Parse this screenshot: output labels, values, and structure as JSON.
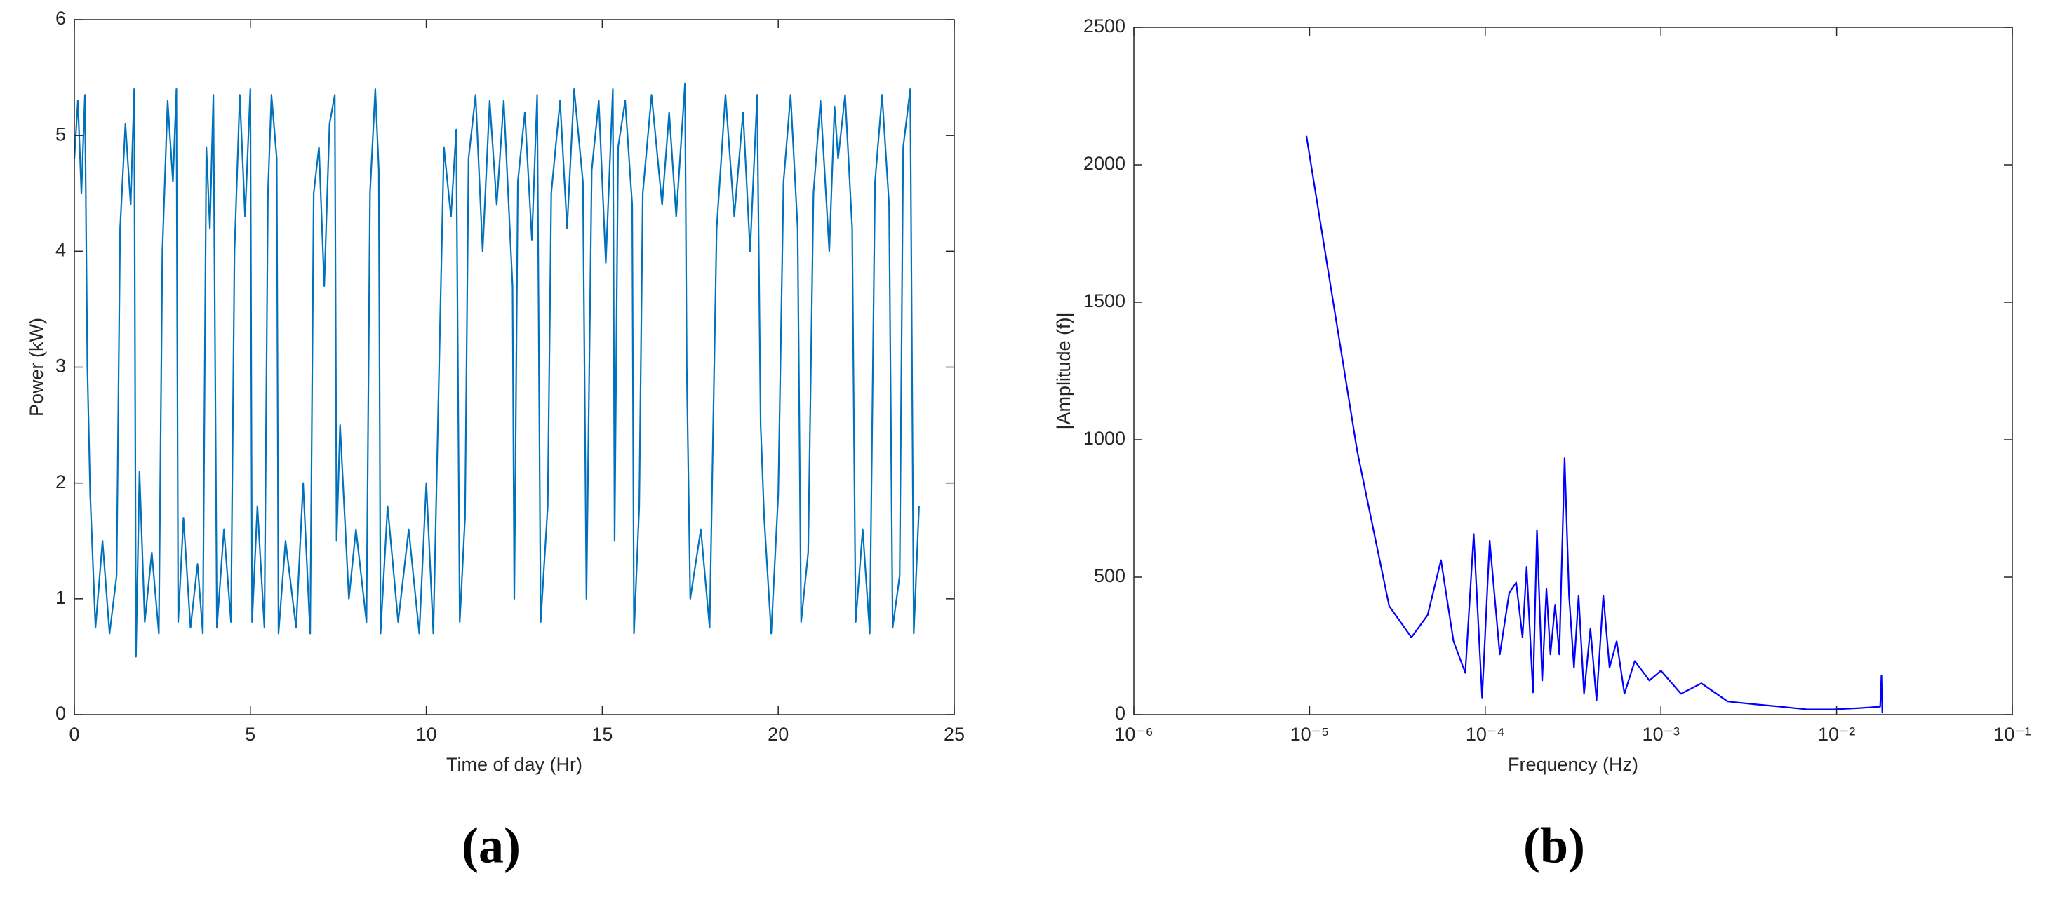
{
  "chart_data": [
    {
      "type": "line",
      "caption": "(a)",
      "xlabel": "Time of day (Hr)",
      "ylabel": "Power (kW)",
      "color": "#0072bd",
      "xlim": [
        0,
        25
      ],
      "xticks": [
        0,
        5,
        10,
        15,
        20,
        25
      ],
      "ylim": [
        0,
        6
      ],
      "yticks": [
        0,
        1,
        2,
        3,
        4,
        5,
        6
      ],
      "log_x": false,
      "x": [
        0.0,
        0.1,
        0.2,
        0.3,
        0.37,
        0.45,
        0.6,
        0.8,
        1.0,
        1.2,
        1.3,
        1.45,
        1.6,
        1.7,
        1.75,
        1.85,
        2.0,
        2.2,
        2.4,
        2.5,
        2.65,
        2.8,
        2.9,
        2.95,
        3.1,
        3.3,
        3.5,
        3.65,
        3.75,
        3.85,
        3.95,
        4.05,
        4.25,
        4.45,
        4.55,
        4.7,
        4.85,
        5.0,
        5.05,
        5.2,
        5.4,
        5.5,
        5.6,
        5.75,
        5.8,
        6.0,
        6.3,
        6.5,
        6.7,
        6.8,
        6.95,
        7.1,
        7.25,
        7.4,
        7.45,
        7.55,
        7.8,
        8.0,
        8.3,
        8.4,
        8.55,
        8.65,
        8.7,
        8.9,
        9.2,
        9.5,
        9.8,
        10.0,
        10.2,
        10.4,
        10.5,
        10.7,
        10.85,
        10.95,
        11.1,
        11.2,
        11.4,
        11.6,
        11.8,
        12.0,
        12.2,
        12.45,
        12.5,
        12.6,
        12.8,
        13.0,
        13.15,
        13.25,
        13.45,
        13.55,
        13.8,
        14.0,
        14.2,
        14.45,
        14.55,
        14.7,
        14.9,
        15.1,
        15.3,
        15.35,
        15.45,
        15.65,
        15.85,
        15.9,
        16.05,
        16.15,
        16.4,
        16.7,
        16.9,
        17.1,
        17.35,
        17.4,
        17.5,
        17.8,
        18.05,
        18.25,
        18.5,
        18.75,
        19.0,
        19.2,
        19.4,
        19.5,
        19.6,
        19.8,
        20.0,
        20.15,
        20.35,
        20.55,
        20.65,
        20.85,
        21.0,
        21.2,
        21.45,
        21.6,
        21.7,
        21.9,
        22.1,
        22.2,
        22.4,
        22.6,
        22.75,
        22.95,
        23.15,
        23.25,
        23.45,
        23.55,
        23.75,
        23.85,
        24.0
      ],
      "values": [
        4.8,
        5.3,
        4.5,
        5.35,
        3.0,
        1.9,
        0.75,
        1.5,
        0.7,
        1.2,
        4.2,
        5.1,
        4.4,
        5.4,
        0.5,
        2.1,
        0.8,
        1.4,
        0.7,
        4.0,
        5.3,
        4.6,
        5.4,
        0.8,
        1.7,
        0.75,
        1.3,
        0.7,
        4.9,
        4.2,
        5.35,
        0.75,
        1.6,
        0.8,
        4.0,
        5.35,
        4.3,
        5.4,
        0.8,
        1.8,
        0.75,
        4.5,
        5.35,
        4.8,
        0.7,
        1.5,
        0.75,
        2.0,
        0.7,
        4.5,
        4.9,
        3.7,
        5.1,
        5.35,
        1.5,
        2.5,
        1.0,
        1.6,
        0.8,
        4.5,
        5.4,
        4.7,
        0.7,
        1.8,
        0.8,
        1.6,
        0.7,
        2.0,
        0.7,
        3.5,
        4.9,
        4.3,
        5.05,
        0.8,
        1.7,
        4.8,
        5.35,
        4.0,
        5.3,
        4.4,
        5.3,
        3.7,
        1.0,
        4.6,
        5.2,
        4.1,
        5.35,
        0.8,
        1.8,
        4.5,
        5.3,
        4.2,
        5.4,
        4.6,
        1.0,
        4.7,
        5.3,
        3.9,
        5.4,
        1.5,
        4.9,
        5.3,
        4.4,
        0.7,
        1.8,
        4.5,
        5.35,
        4.4,
        5.2,
        4.3,
        5.45,
        3.0,
        1.0,
        1.6,
        0.75,
        4.2,
        5.35,
        4.3,
        5.2,
        4.0,
        5.35,
        2.5,
        1.7,
        0.7,
        1.9,
        4.6,
        5.35,
        4.2,
        0.8,
        1.4,
        4.5,
        5.3,
        4.0,
        5.25,
        4.8,
        5.35,
        4.2,
        0.8,
        1.6,
        0.7,
        4.6,
        5.35,
        4.4,
        0.75,
        1.2,
        4.9,
        5.4,
        0.7,
        1.8
      ]
    },
    {
      "type": "line",
      "caption": "(b)",
      "xlabel": "Frequency (Hz)",
      "ylabel": "|Amplitude (f)|",
      "color": "#0000ff",
      "xlim": [
        1e-06,
        0.1
      ],
      "xticks": [
        {
          "value": 1e-06,
          "label": "10⁻⁶"
        },
        {
          "value": 1e-05,
          "label": "10⁻⁵"
        },
        {
          "value": 0.0001,
          "label": "10⁻⁴"
        },
        {
          "value": 0.001,
          "label": "10⁻³"
        },
        {
          "value": 0.01,
          "label": "10⁻²"
        },
        {
          "value": 0.1,
          "label": "10⁻¹"
        }
      ],
      "ylim": [
        0,
        2500
      ],
      "yticks": [
        0,
        500,
        1000,
        1500,
        2000,
        2500
      ],
      "log_x": true,
      "x": [
        9.6e-06,
        1.87e-05,
        2.84e-05,
        3.8e-05,
        4.7e-05,
        5.6e-05,
        6.6e-05,
        7.7e-05,
        8.6e-05,
        9.6e-05,
        0.000106,
        0.000121,
        0.000137,
        0.00015,
        0.000163,
        0.000172,
        0.000187,
        0.000197,
        0.000211,
        0.000223,
        0.000235,
        0.00025,
        0.000264,
        0.000283,
        0.0003,
        0.00032,
        0.00034,
        0.000365,
        0.000397,
        0.00043,
        0.00047,
        0.00051,
        0.00056,
        0.00062,
        0.00071,
        0.00086,
        0.001,
        0.0013,
        0.0017,
        0.0024,
        0.0034,
        0.0048,
        0.0068,
        0.0096,
        0.0136,
        0.0177,
        0.018,
        0.0182
      ],
      "values": [
        2105,
        957,
        395,
        281,
        362,
        562,
        267,
        152,
        657,
        62,
        633,
        219,
        443,
        481,
        281,
        538,
        81,
        671,
        124,
        457,
        219,
        400,
        219,
        933,
        433,
        171,
        433,
        76,
        314,
        52,
        433,
        171,
        267,
        76,
        195,
        124,
        160,
        76,
        114,
        48,
        38,
        29,
        19,
        19,
        24,
        29,
        143,
        5
      ]
    }
  ]
}
